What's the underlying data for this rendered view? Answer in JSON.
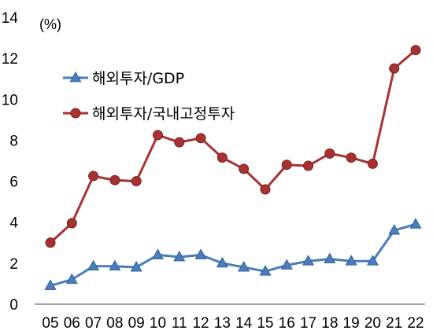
{
  "chart_data": {
    "type": "line",
    "unit_label": "(%)",
    "categories": [
      "05",
      "06",
      "07",
      "08",
      "09",
      "10",
      "11",
      "12",
      "13",
      "14",
      "15",
      "16",
      "17",
      "18",
      "19",
      "20",
      "21",
      "22"
    ],
    "ylim": [
      0,
      14
    ],
    "yticks": [
      "0",
      "2",
      "4",
      "6",
      "8",
      "10",
      "12",
      "14"
    ],
    "grid": false,
    "legend_position": "top-left",
    "series": [
      {
        "name": "해외투자/GDP",
        "color": "#4a7ebb",
        "marker": "triangle",
        "values": [
          0.9,
          1.2,
          1.85,
          1.85,
          1.8,
          2.4,
          2.3,
          2.4,
          2.0,
          1.8,
          1.6,
          1.9,
          2.1,
          2.2,
          2.1,
          2.1,
          3.6,
          3.9
        ]
      },
      {
        "name": "해외투자/국내고정투자",
        "color": "#a83232",
        "marker": "circle",
        "values": [
          3.0,
          3.95,
          6.25,
          6.05,
          6.0,
          8.25,
          7.9,
          8.1,
          7.15,
          6.6,
          5.6,
          6.8,
          6.75,
          7.35,
          7.15,
          6.85,
          11.5,
          12.4
        ]
      }
    ]
  }
}
